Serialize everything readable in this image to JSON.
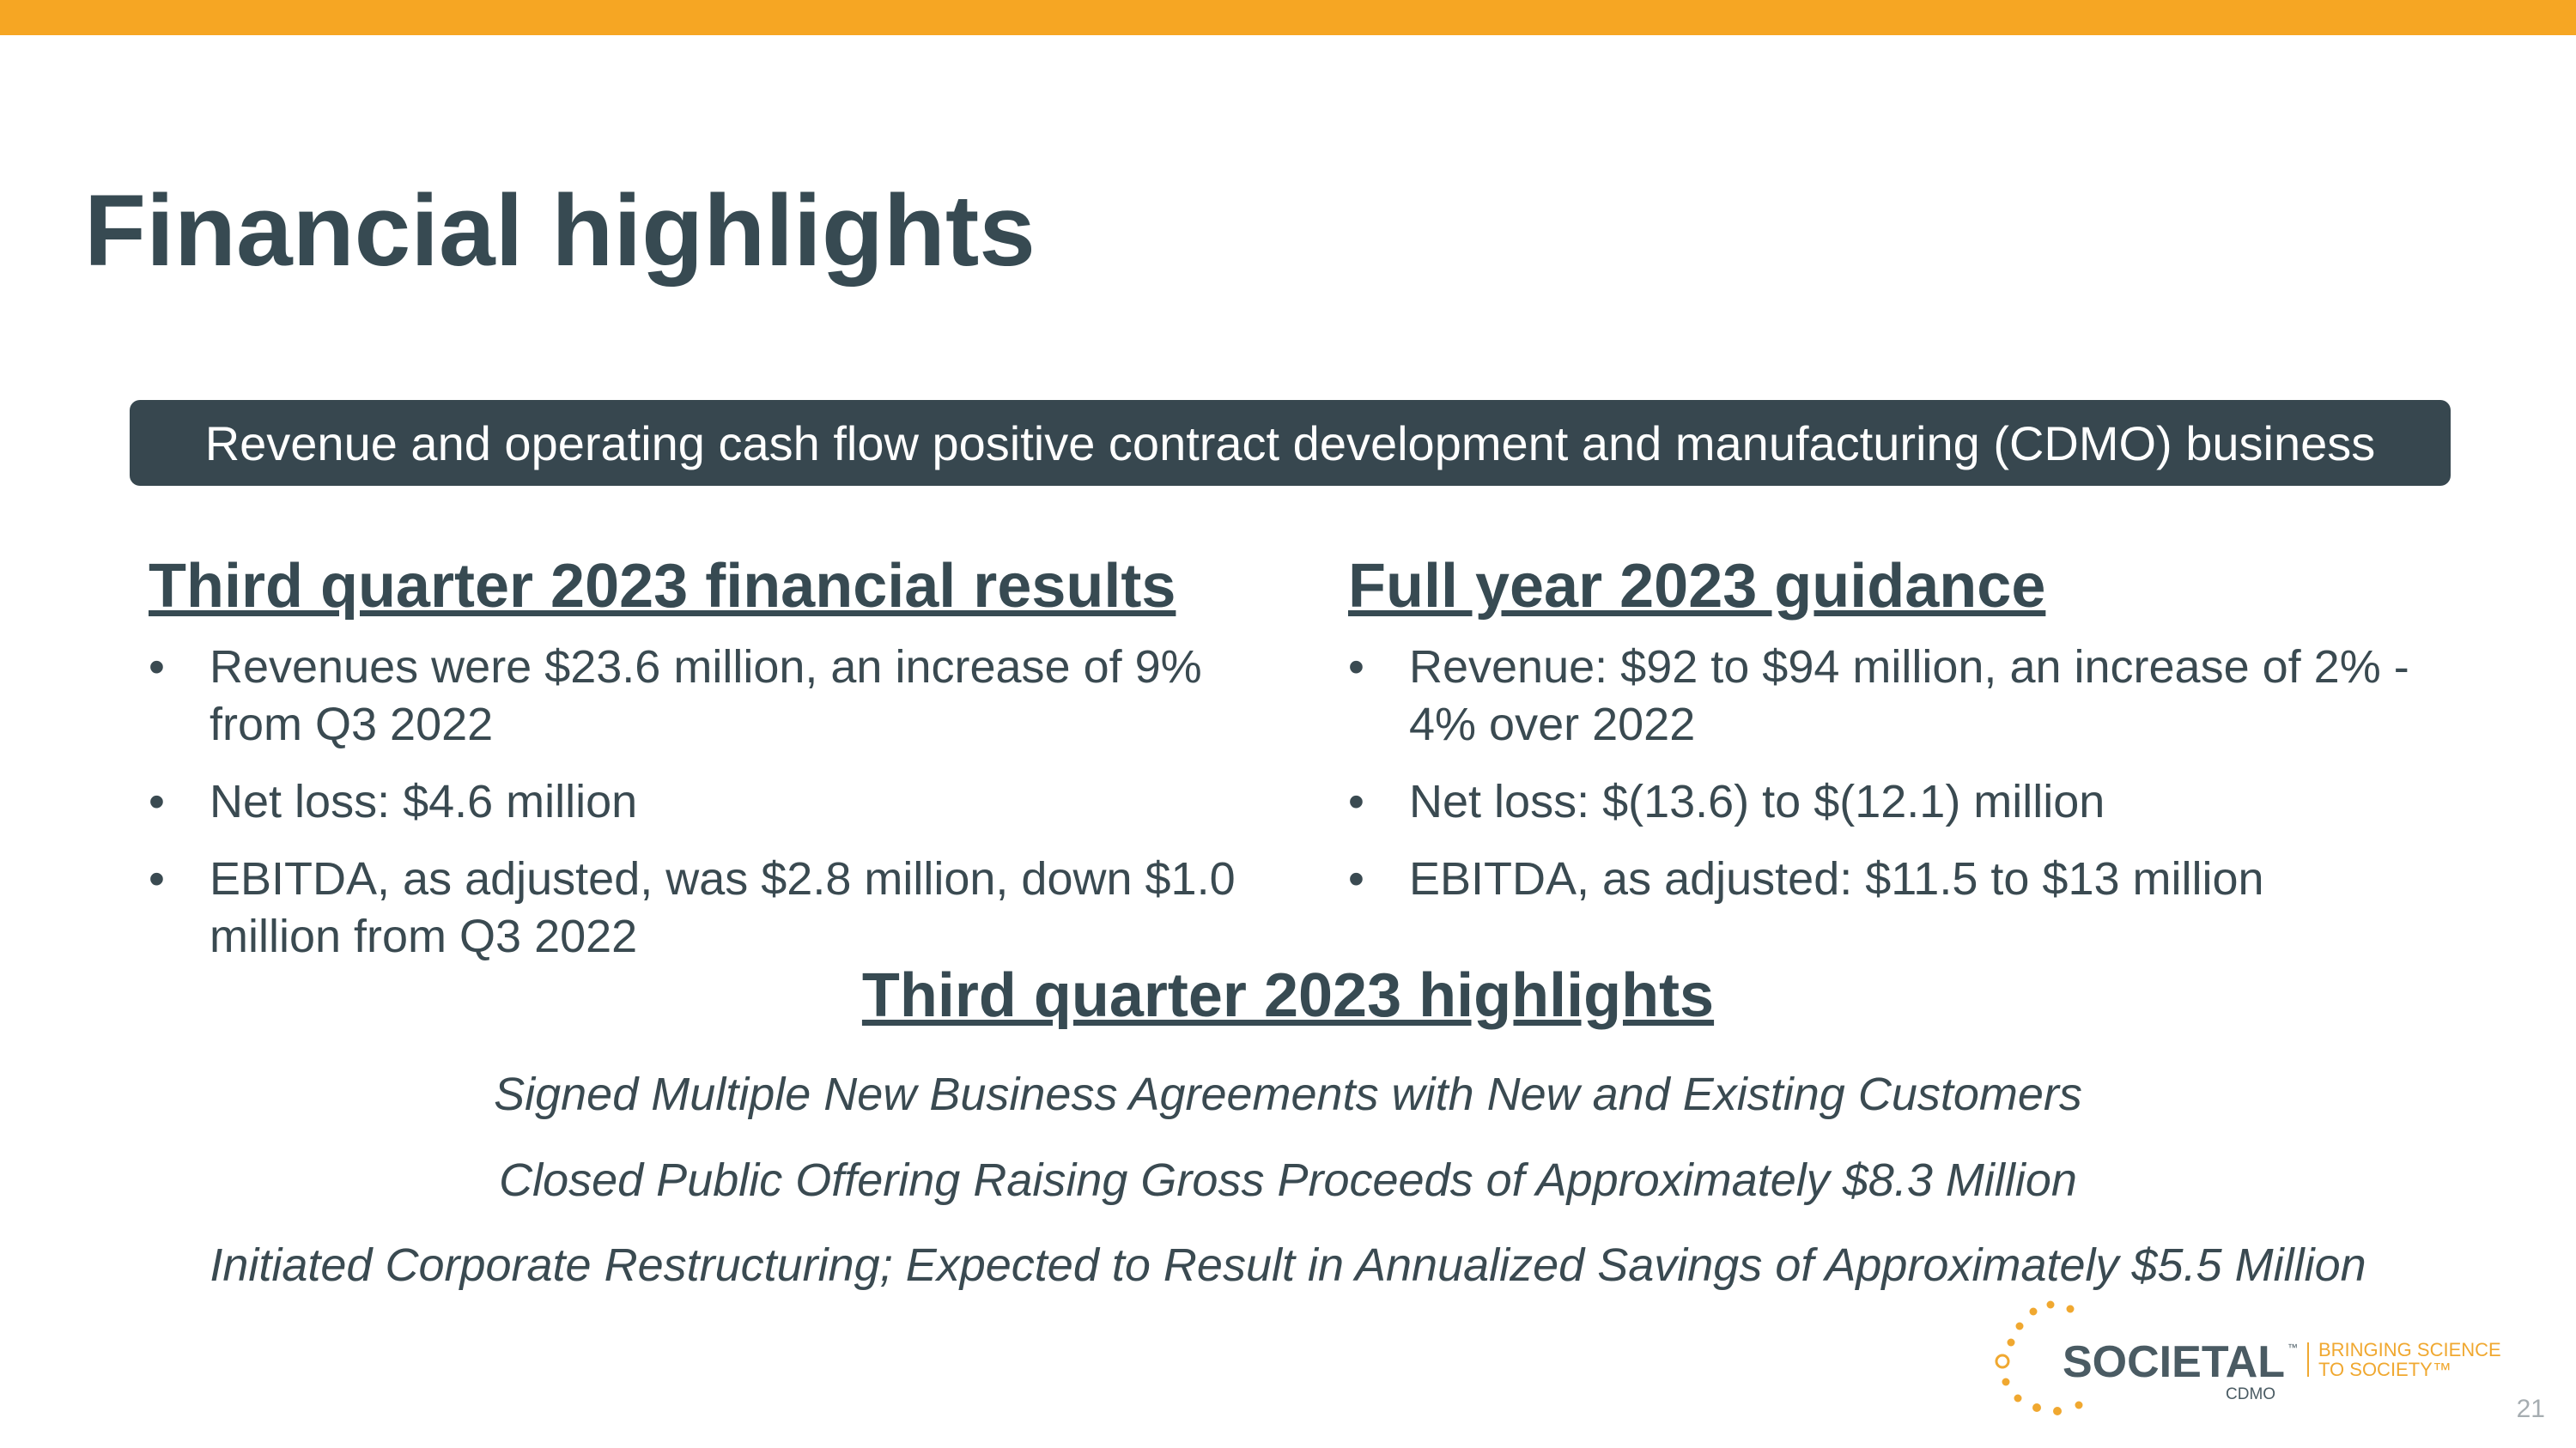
{
  "colors": {
    "accent_bar": "#f6a623",
    "banner_bg": "#37474f",
    "heading_text": "#374a52",
    "body_text": "#3a4a51",
    "logo_orange": "#f0a830",
    "logo_gray": "#4a5b63"
  },
  "slide": {
    "title": "Financial highlights",
    "banner_text": "Revenue and operating cash flow positive contract development and manufacturing (CDMO) business",
    "page_number": "21"
  },
  "q3_results": {
    "heading": "Third quarter 2023 financial results",
    "bullet_char": "•",
    "items": [
      "Revenues were $23.6 million, an increase of 9% from Q3 2022",
      "Net loss: $4.6 million",
      "EBITDA, as adjusted, was $2.8 million, down $1.0 million from Q3 2022"
    ]
  },
  "guidance": {
    "heading": "Full year 2023 guidance",
    "bullet_char": "•",
    "items": [
      "Revenue: $92 to $94 million, an increase of 2% - 4% over 2022",
      "Net loss: $(13.6) to $(12.1) million",
      "EBITDA, as adjusted: $11.5 to $13 million"
    ]
  },
  "highlights": {
    "heading": "Third quarter 2023 highlights",
    "items": [
      "Signed Multiple New Business Agreements with New and Existing Customers",
      "Closed Public Offering Raising Gross Proceeds of Approximately $8.3 Million",
      "Initiated Corporate Restructuring; Expected to Result in Annualized Savings of Approximately $5.5 Million"
    ]
  },
  "logo": {
    "icon": "sun-dots-icon",
    "name": "SOCIETAL",
    "trademark": "™",
    "sub": "CDMO",
    "tagline_line1": "BRINGING SCIENCE",
    "tagline_line2": "TO SOCIETY™"
  }
}
